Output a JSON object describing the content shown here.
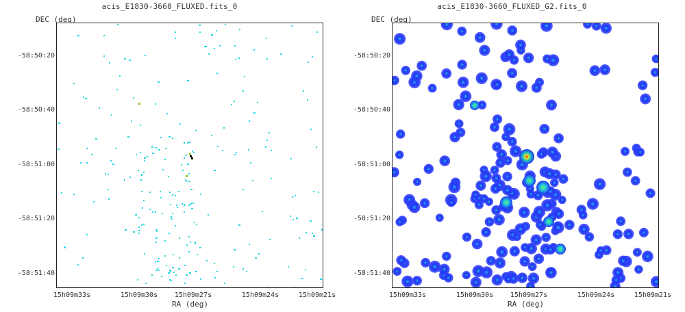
{
  "panels": [
    {
      "title": "acis_E1830-3660_FLUXED.fits_0",
      "ylabel": "DEC (deg)",
      "xlabel": "RA (deg)",
      "y_ticks": [
        "-58:50:20",
        "-58:50:40",
        "-58:51:00",
        "-58:51:20",
        "-58:51:40"
      ],
      "x_ticks": [
        "15h09m33s",
        "15h09m30s",
        "15h09m27s",
        "15h09m24s",
        "15h09m21s"
      ],
      "style": "sparse-cyan"
    },
    {
      "title": "acis_E1830-3660_FLUXED_G2.fits_0",
      "ylabel": "DEC (deg)",
      "xlabel": "RA (deg)",
      "y_ticks": [
        "-58:50:20",
        "-58:50:40",
        "-58:51:00",
        "-58:51:20",
        "-58:51:40"
      ],
      "x_ticks": [
        "15h09m33s",
        "15h09m30s",
        "15h09m27s",
        "15h09m24s",
        "15h09m21s"
      ],
      "style": "smoothed-blue"
    }
  ],
  "colors": {
    "sparse_pixel": "#22d8e0",
    "hot_pixel": "#88cc22",
    "peak_pixel": "#111111",
    "smooth_low": "#2222ee",
    "smooth_mid": "#22ccee",
    "smooth_high": "#ee2222",
    "frame": "#222222"
  }
}
